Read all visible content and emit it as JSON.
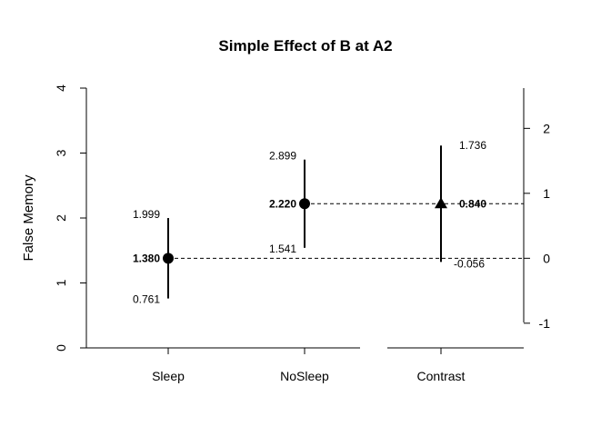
{
  "chart_data": {
    "type": "scatter",
    "title": "Simple Effect of B at A2",
    "ylabel": "False Memory",
    "categories": [
      "Sleep",
      "NoSleep",
      "Contrast"
    ],
    "left_axis": {
      "ylim": [
        0,
        4
      ],
      "ticks": [
        "0",
        "1",
        "2",
        "3",
        "4"
      ]
    },
    "right_axis": {
      "ticks": [
        "-1",
        "0",
        "1",
        "2"
      ]
    },
    "points": [
      {
        "category": "Sleep",
        "estimate": 1.38,
        "lower": 0.761,
        "upper": 1.999,
        "marker": "circle",
        "estimate_label": "1.380",
        "lower_label": "0.761",
        "upper_label": "1.999"
      },
      {
        "category": "NoSleep",
        "estimate": 2.22,
        "lower": 1.541,
        "upper": 2.899,
        "marker": "circle",
        "estimate_label": "2.220",
        "lower_label": "1.541",
        "upper_label": "2.899"
      },
      {
        "category": "Contrast",
        "estimate": 0.84,
        "lower": -0.056,
        "upper": 1.736,
        "marker": "triangle",
        "estimate_label": "0.840",
        "lower_label": "-0.056",
        "upper_label": "1.736"
      }
    ],
    "reference_lines": "dashed",
    "grid": false
  }
}
